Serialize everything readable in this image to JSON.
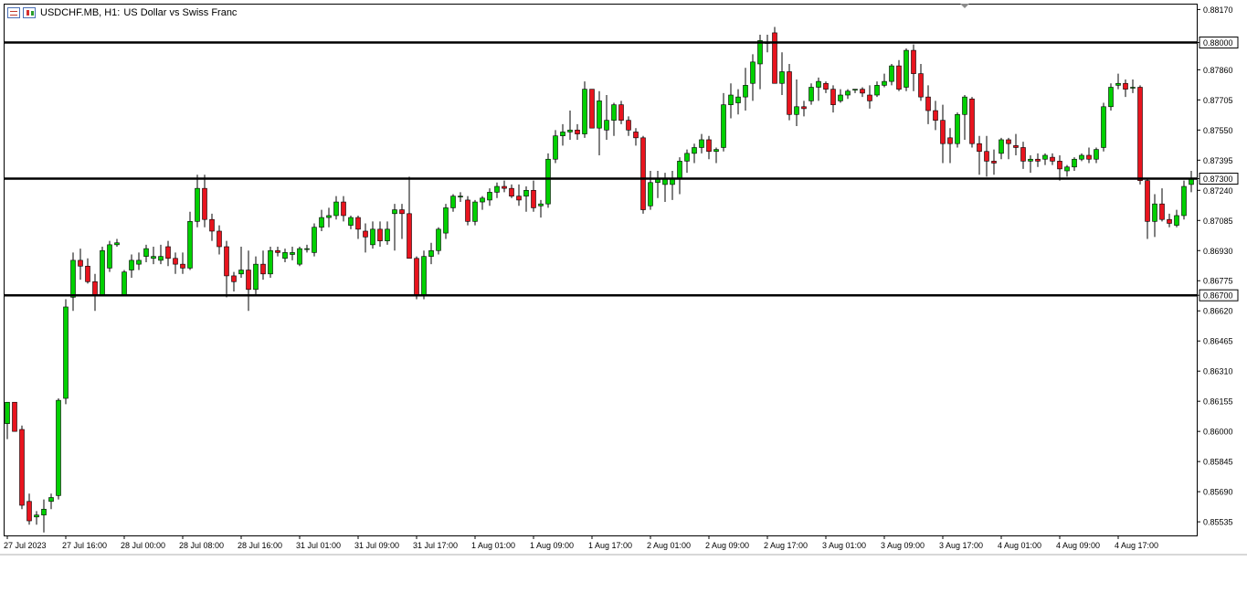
{
  "header": {
    "symbol": "USDCHF.MB,",
    "timeframe": "H1:",
    "description": "US Dollar vs Swiss Franc"
  },
  "colors": {
    "bull": "#00d000",
    "bear": "#e8141e",
    "wick": "#000000",
    "level_line": "#000000",
    "grid_frame": "#000000"
  },
  "chart_data": {
    "type": "candlestick",
    "ylim": [
      0.85465,
      0.882
    ],
    "y_ticks": [
      "0.88170",
      "0.88000",
      "0.87860",
      "0.87705",
      "0.87550",
      "0.87395",
      "0.87300",
      "0.87240",
      "0.87085",
      "0.86930",
      "0.86775",
      "0.86700",
      "0.86620",
      "0.86465",
      "0.86310",
      "0.86155",
      "0.86000",
      "0.85845",
      "0.85690",
      "0.85535"
    ],
    "y_tick_values": [
      0.8817,
      0.88,
      0.8786,
      0.87705,
      0.8755,
      0.87395,
      0.873,
      0.8724,
      0.87085,
      0.8693,
      0.86775,
      0.867,
      0.8662,
      0.86465,
      0.8631,
      0.86155,
      0.86,
      0.85845,
      0.8569,
      0.85535
    ],
    "highlighted_ticks": [
      "0.88000",
      "0.87300",
      "0.86700"
    ],
    "levels": [
      0.88,
      0.873,
      0.867
    ],
    "x_labels": [
      "27 Jul 2023",
      "27 Jul 16:00",
      "28 Jul 00:00",
      "28 Jul 08:00",
      "28 Jul 16:00",
      "31 Jul 01:00",
      "31 Jul 09:00",
      "31 Jul 17:00",
      "1 Aug 01:00",
      "1 Aug 09:00",
      "1 Aug 17:00",
      "2 Aug 01:00",
      "2 Aug 09:00",
      "2 Aug 17:00",
      "3 Aug 01:00",
      "3 Aug 09:00",
      "3 Aug 17:00",
      "4 Aug 01:00",
      "4 Aug 09:00",
      "4 Aug 17:00"
    ],
    "x_label_index": [
      0,
      8,
      16,
      24,
      32,
      40,
      48,
      56,
      64,
      72,
      80,
      88,
      96,
      104,
      112,
      120,
      128,
      136,
      144,
      152
    ],
    "candles": [
      [
        0.8604,
        0.8615,
        0.8596,
        0.8615
      ],
      [
        0.8615,
        0.8615,
        0.86,
        0.86
      ],
      [
        0.8601,
        0.8603,
        0.856,
        0.8562
      ],
      [
        0.8564,
        0.8568,
        0.8552,
        0.8554
      ],
      [
        0.8556,
        0.8559,
        0.8552,
        0.8557
      ],
      [
        0.8557,
        0.8565,
        0.8548,
        0.856
      ],
      [
        0.8564,
        0.8568,
        0.856,
        0.8566
      ],
      [
        0.8567,
        0.8617,
        0.8565,
        0.8616
      ],
      [
        0.8617,
        0.8668,
        0.8614,
        0.8664
      ],
      [
        0.8669,
        0.8692,
        0.8662,
        0.8688
      ],
      [
        0.8688,
        0.8694,
        0.8678,
        0.8685
      ],
      [
        0.8685,
        0.8689,
        0.8676,
        0.8677
      ],
      [
        0.8677,
        0.8681,
        0.8662,
        0.867
      ],
      [
        0.867,
        0.8695,
        0.867,
        0.8693
      ],
      [
        0.8684,
        0.8698,
        0.8682,
        0.8696
      ],
      [
        0.8696,
        0.8699,
        0.8695,
        0.8697
      ],
      [
        0.867,
        0.8683,
        0.867,
        0.8682
      ],
      [
        0.8683,
        0.8691,
        0.8679,
        0.8688
      ],
      [
        0.8686,
        0.8692,
        0.8683,
        0.8688
      ],
      [
        0.869,
        0.8696,
        0.8687,
        0.8694
      ],
      [
        0.8689,
        0.8695,
        0.8686,
        0.869
      ],
      [
        0.8688,
        0.8696,
        0.8686,
        0.869
      ],
      [
        0.8695,
        0.8698,
        0.8685,
        0.8689
      ],
      [
        0.8689,
        0.8692,
        0.8681,
        0.8686
      ],
      [
        0.8686,
        0.8692,
        0.8681,
        0.8684
      ],
      [
        0.8684,
        0.8713,
        0.8683,
        0.8708
      ],
      [
        0.8708,
        0.8732,
        0.8705,
        0.8725
      ],
      [
        0.8725,
        0.8732,
        0.8705,
        0.8709
      ],
      [
        0.8709,
        0.8712,
        0.8698,
        0.8703
      ],
      [
        0.8703,
        0.8706,
        0.8691,
        0.8695
      ],
      [
        0.8695,
        0.8698,
        0.8669,
        0.868
      ],
      [
        0.868,
        0.8682,
        0.8672,
        0.8677
      ],
      [
        0.8681,
        0.8695,
        0.8679,
        0.8683
      ],
      [
        0.8683,
        0.8693,
        0.8662,
        0.8673
      ],
      [
        0.8673,
        0.869,
        0.867,
        0.8686
      ],
      [
        0.8686,
        0.8693,
        0.8678,
        0.8681
      ],
      [
        0.8681,
        0.8695,
        0.8679,
        0.8693
      ],
      [
        0.8693,
        0.8695,
        0.869,
        0.8692
      ],
      [
        0.8689,
        0.8694,
        0.8687,
        0.8692
      ],
      [
        0.8691,
        0.8695,
        0.8688,
        0.8692
      ],
      [
        0.8686,
        0.8695,
        0.8685,
        0.8694
      ],
      [
        0.8694,
        0.8696,
        0.8692,
        0.8694
      ],
      [
        0.8692,
        0.8707,
        0.869,
        0.8705
      ],
      [
        0.8705,
        0.8714,
        0.8703,
        0.871
      ],
      [
        0.871,
        0.8715,
        0.8705,
        0.8711
      ],
      [
        0.8711,
        0.8721,
        0.8709,
        0.8718
      ],
      [
        0.8718,
        0.8721,
        0.8708,
        0.8711
      ],
      [
        0.8706,
        0.8711,
        0.8704,
        0.871
      ],
      [
        0.871,
        0.8711,
        0.8699,
        0.8704
      ],
      [
        0.8703,
        0.8707,
        0.8692,
        0.87
      ],
      [
        0.8696,
        0.8708,
        0.8694,
        0.8704
      ],
      [
        0.8704,
        0.8708,
        0.8695,
        0.8698
      ],
      [
        0.8698,
        0.8708,
        0.8696,
        0.8704
      ],
      [
        0.8712,
        0.8717,
        0.8693,
        0.8714
      ],
      [
        0.8714,
        0.8717,
        0.8699,
        0.8712
      ],
      [
        0.8712,
        0.8731,
        0.8689,
        0.8689
      ],
      [
        0.8689,
        0.869,
        0.8668,
        0.867
      ],
      [
        0.867,
        0.8693,
        0.8668,
        0.869
      ],
      [
        0.869,
        0.8697,
        0.8686,
        0.8693
      ],
      [
        0.8693,
        0.8705,
        0.8691,
        0.8704
      ],
      [
        0.8702,
        0.8717,
        0.8699,
        0.8715
      ],
      [
        0.8715,
        0.8722,
        0.8713,
        0.8721
      ],
      [
        0.8721,
        0.8723,
        0.8718,
        0.8721
      ],
      [
        0.8719,
        0.8721,
        0.8706,
        0.8708
      ],
      [
        0.8708,
        0.8719,
        0.8706,
        0.8718
      ],
      [
        0.8718,
        0.8721,
        0.8714,
        0.872
      ],
      [
        0.8719,
        0.8725,
        0.8716,
        0.8723
      ],
      [
        0.8723,
        0.8728,
        0.872,
        0.8726
      ],
      [
        0.8726,
        0.8729,
        0.8723,
        0.8725
      ],
      [
        0.8725,
        0.8727,
        0.872,
        0.8721
      ],
      [
        0.8721,
        0.8727,
        0.8716,
        0.8719
      ],
      [
        0.8721,
        0.8726,
        0.8713,
        0.8724
      ],
      [
        0.8724,
        0.8729,
        0.8713,
        0.8715
      ],
      [
        0.8716,
        0.8719,
        0.871,
        0.8717
      ],
      [
        0.8717,
        0.8743,
        0.8715,
        0.874
      ],
      [
        0.874,
        0.8755,
        0.8738,
        0.8752
      ],
      [
        0.8752,
        0.8758,
        0.8747,
        0.8754
      ],
      [
        0.8754,
        0.8765,
        0.875,
        0.8755
      ],
      [
        0.8755,
        0.8758,
        0.875,
        0.8753
      ],
      [
        0.8753,
        0.878,
        0.8751,
        0.8776
      ],
      [
        0.8776,
        0.8776,
        0.8758,
        0.8756
      ],
      [
        0.8756,
        0.8775,
        0.8742,
        0.877
      ],
      [
        0.8755,
        0.8773,
        0.875,
        0.876
      ],
      [
        0.876,
        0.8769,
        0.8752,
        0.8768
      ],
      [
        0.8768,
        0.877,
        0.8758,
        0.876
      ],
      [
        0.876,
        0.8762,
        0.8752,
        0.8755
      ],
      [
        0.8754,
        0.8756,
        0.8747,
        0.8751
      ],
      [
        0.8751,
        0.8752,
        0.8712,
        0.8714
      ],
      [
        0.8716,
        0.8734,
        0.8714,
        0.8728
      ],
      [
        0.8728,
        0.8734,
        0.872,
        0.873
      ],
      [
        0.8727,
        0.8733,
        0.8718,
        0.873
      ],
      [
        0.8727,
        0.8734,
        0.8719,
        0.873
      ],
      [
        0.873,
        0.8741,
        0.8722,
        0.8739
      ],
      [
        0.8739,
        0.8745,
        0.8733,
        0.8743
      ],
      [
        0.8743,
        0.8748,
        0.8738,
        0.8746
      ],
      [
        0.8746,
        0.8753,
        0.8743,
        0.875
      ],
      [
        0.875,
        0.8752,
        0.874,
        0.8744
      ],
      [
        0.8744,
        0.8746,
        0.8738,
        0.8745
      ],
      [
        0.8746,
        0.8774,
        0.8744,
        0.8768
      ],
      [
        0.8768,
        0.8779,
        0.8761,
        0.8773
      ],
      [
        0.8769,
        0.8776,
        0.8763,
        0.8772
      ],
      [
        0.8772,
        0.8787,
        0.8765,
        0.8778
      ],
      [
        0.8779,
        0.8794,
        0.877,
        0.879
      ],
      [
        0.8789,
        0.8804,
        0.8776,
        0.8801
      ],
      [
        0.88,
        0.8804,
        0.8795,
        0.88
      ],
      [
        0.8805,
        0.8808,
        0.8781,
        0.8779
      ],
      [
        0.8779,
        0.8795,
        0.8773,
        0.8785
      ],
      [
        0.8785,
        0.8789,
        0.876,
        0.8763
      ],
      [
        0.8763,
        0.8781,
        0.8757,
        0.8767
      ],
      [
        0.8767,
        0.877,
        0.8762,
        0.8766
      ],
      [
        0.877,
        0.8779,
        0.8768,
        0.8777
      ],
      [
        0.8777,
        0.8782,
        0.877,
        0.878
      ],
      [
        0.8779,
        0.878,
        0.8774,
        0.8776
      ],
      [
        0.8776,
        0.8778,
        0.8764,
        0.8768
      ],
      [
        0.877,
        0.8776,
        0.8769,
        0.8773
      ],
      [
        0.8773,
        0.8776,
        0.8771,
        0.8775
      ],
      [
        0.8776,
        0.8776,
        0.8774,
        0.8776
      ],
      [
        0.8776,
        0.8777,
        0.8772,
        0.8774
      ],
      [
        0.8773,
        0.8778,
        0.8766,
        0.877
      ],
      [
        0.8773,
        0.878,
        0.8772,
        0.8778
      ],
      [
        0.8778,
        0.8784,
        0.8777,
        0.878
      ],
      [
        0.878,
        0.8789,
        0.8778,
        0.8788
      ],
      [
        0.8788,
        0.8791,
        0.8775,
        0.8776
      ],
      [
        0.8777,
        0.8797,
        0.8775,
        0.8796
      ],
      [
        0.8796,
        0.8799,
        0.8775,
        0.8784
      ],
      [
        0.8784,
        0.8789,
        0.877,
        0.8772
      ],
      [
        0.8772,
        0.8778,
        0.8758,
        0.8765
      ],
      [
        0.8765,
        0.877,
        0.8755,
        0.876
      ],
      [
        0.876,
        0.8768,
        0.8738,
        0.8748
      ],
      [
        0.8751,
        0.8756,
        0.8738,
        0.8748
      ],
      [
        0.8748,
        0.8764,
        0.8746,
        0.8763
      ],
      [
        0.8763,
        0.8773,
        0.875,
        0.8772
      ],
      [
        0.8771,
        0.8772,
        0.8746,
        0.8748
      ],
      [
        0.8748,
        0.8752,
        0.8732,
        0.8744
      ],
      [
        0.8744,
        0.8752,
        0.8731,
        0.8739
      ],
      [
        0.8739,
        0.8745,
        0.8732,
        0.8738
      ],
      [
        0.8743,
        0.8751,
        0.874,
        0.875
      ],
      [
        0.875,
        0.8751,
        0.874,
        0.8748
      ],
      [
        0.8747,
        0.8753,
        0.8742,
        0.8746
      ],
      [
        0.8746,
        0.8749,
        0.8735,
        0.8739
      ],
      [
        0.8739,
        0.8742,
        0.8733,
        0.874
      ],
      [
        0.874,
        0.8743,
        0.8736,
        0.8739
      ],
      [
        0.874,
        0.8743,
        0.8737,
        0.8742
      ],
      [
        0.8741,
        0.8743,
        0.8737,
        0.8739
      ],
      [
        0.8739,
        0.8742,
        0.8729,
        0.8735
      ],
      [
        0.8734,
        0.8737,
        0.8731,
        0.8736
      ],
      [
        0.8736,
        0.8741,
        0.8734,
        0.874
      ],
      [
        0.874,
        0.8743,
        0.8739,
        0.8742
      ],
      [
        0.8742,
        0.8746,
        0.8738,
        0.874
      ],
      [
        0.874,
        0.8746,
        0.8738,
        0.8745
      ],
      [
        0.8746,
        0.8769,
        0.8744,
        0.8767
      ],
      [
        0.8767,
        0.8779,
        0.8765,
        0.8777
      ],
      [
        0.8778,
        0.8784,
        0.8776,
        0.8779
      ],
      [
        0.8779,
        0.8781,
        0.8772,
        0.8776
      ],
      [
        0.8777,
        0.8781,
        0.8774,
        0.8777
      ],
      [
        0.8777,
        0.8778,
        0.8727,
        0.8729
      ],
      [
        0.8729,
        0.873,
        0.8699,
        0.8708
      ],
      [
        0.8708,
        0.8722,
        0.87,
        0.8717
      ],
      [
        0.8717,
        0.8725,
        0.8708,
        0.8709
      ],
      [
        0.8709,
        0.8712,
        0.8705,
        0.8707
      ],
      [
        0.8706,
        0.8714,
        0.8705,
        0.8711
      ],
      [
        0.8711,
        0.8729,
        0.8709,
        0.8726
      ],
      [
        0.8727,
        0.8734,
        0.8723,
        0.873
      ]
    ]
  }
}
